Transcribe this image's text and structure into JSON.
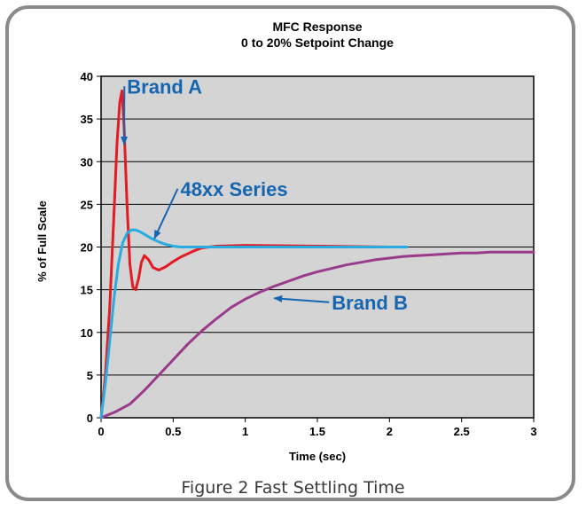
{
  "caption": "Figure 2 Fast Settling Time",
  "chart_data": {
    "type": "line",
    "title_lines": [
      "MFC Response",
      "0 to 20% Setpoint Change"
    ],
    "xlabel": "Time (sec)",
    "ylabel": "% of Full Scale",
    "xlim": [
      0,
      3
    ],
    "ylim": [
      0,
      40
    ],
    "x_ticks": [
      0,
      0.5,
      1,
      1.5,
      2,
      2.5,
      3
    ],
    "y_ticks": [
      0,
      5,
      10,
      15,
      20,
      25,
      30,
      35,
      40
    ],
    "x_tick_labels": [
      "0",
      "0.5",
      "1",
      "1.5",
      "2",
      "2.5",
      "3"
    ],
    "y_tick_labels": [
      "0",
      "5",
      "10",
      "15",
      "20",
      "25",
      "30",
      "35",
      "40"
    ],
    "grid": "horizontal",
    "plot_background": "#d4d4d4",
    "series": [
      {
        "name": "Brand A",
        "color": "#e31b23",
        "x": [
          0,
          0.03,
          0.06,
          0.09,
          0.11,
          0.13,
          0.145,
          0.16,
          0.18,
          0.2,
          0.22,
          0.24,
          0.26,
          0.28,
          0.3,
          0.33,
          0.36,
          0.4,
          0.45,
          0.5,
          0.55,
          0.6,
          0.65,
          0.7,
          0.8,
          1.0,
          1.5,
          2.0,
          2.1
        ],
        "y": [
          0,
          5,
          13,
          24,
          32,
          37,
          38.3,
          34,
          25,
          18,
          15.3,
          15,
          16.3,
          18.2,
          19,
          18.5,
          17.6,
          17.3,
          17.7,
          18.3,
          18.8,
          19.2,
          19.6,
          19.9,
          20.1,
          20.2,
          20.1,
          20,
          20
        ]
      },
      {
        "name": "48xx Series",
        "color": "#29abe2",
        "x": [
          0,
          0.03,
          0.06,
          0.09,
          0.12,
          0.15,
          0.18,
          0.21,
          0.24,
          0.27,
          0.3,
          0.35,
          0.4,
          0.45,
          0.5,
          0.55,
          0.6,
          0.8,
          1.0,
          1.5,
          2.0,
          2.12
        ],
        "y": [
          0,
          4,
          9,
          14,
          18,
          20.5,
          21.6,
          22,
          22,
          21.8,
          21.5,
          21,
          20.6,
          20.3,
          20.1,
          20,
          20,
          20,
          20,
          20,
          20,
          20
        ]
      },
      {
        "name": "Brand B",
        "color": "#993b8a",
        "x": [
          0,
          0.1,
          0.2,
          0.3,
          0.4,
          0.5,
          0.6,
          0.7,
          0.8,
          0.9,
          1.0,
          1.1,
          1.2,
          1.3,
          1.4,
          1.5,
          1.6,
          1.7,
          1.8,
          1.9,
          2.0,
          2.1,
          2.2,
          2.3,
          2.4,
          2.5,
          2.6,
          2.7,
          2.8,
          2.9,
          3.0
        ],
        "y": [
          0,
          0.7,
          1.6,
          3.2,
          5,
          6.8,
          8.6,
          10.2,
          11.6,
          12.9,
          13.9,
          14.7,
          15.4,
          16,
          16.6,
          17.1,
          17.5,
          17.9,
          18.2,
          18.5,
          18.7,
          18.9,
          19,
          19.1,
          19.2,
          19.3,
          19.3,
          19.4,
          19.4,
          19.4,
          19.4
        ]
      }
    ],
    "annotations": [
      {
        "text": "Brand A",
        "series": "Brand A",
        "x": 0.18,
        "y": 38,
        "point_x": 0.16,
        "point_y": 32
      },
      {
        "text": "48xx Series",
        "series": "48xx Series",
        "x": 0.55,
        "y": 26,
        "point_x": 0.37,
        "point_y": 21
      },
      {
        "text": "Brand B",
        "series": "Brand B",
        "x": 1.6,
        "y": 12.7,
        "point_x": 1.2,
        "point_y": 14
      }
    ]
  }
}
